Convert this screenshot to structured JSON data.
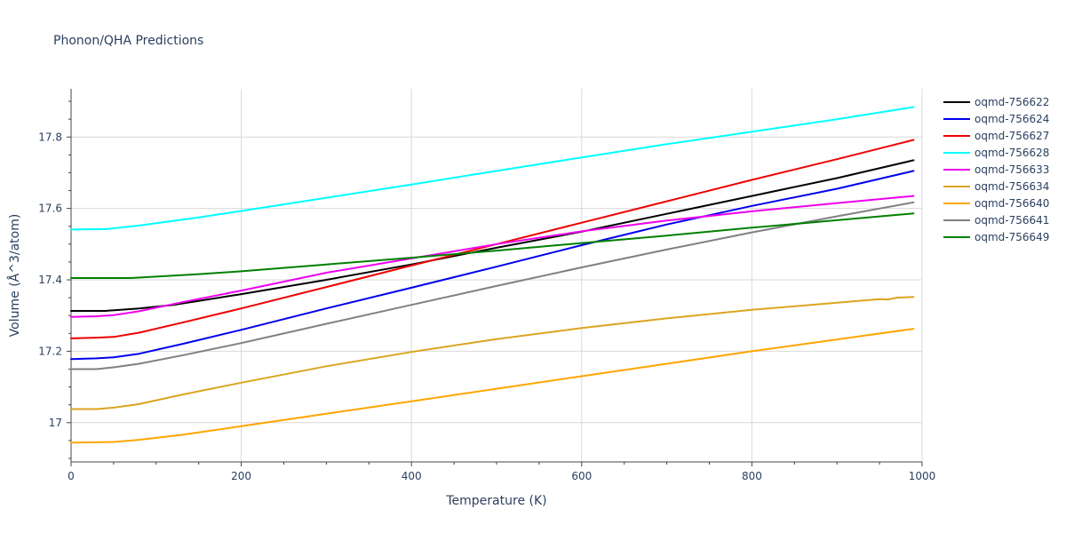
{
  "chart_data": {
    "type": "line",
    "title": "Phonon/QHA Predictions",
    "xlabel": "Temperature (K)",
    "ylabel": "Volume (Å^3/atom)",
    "xlim": [
      0,
      1000
    ],
    "ylim": [
      16.89,
      17.935
    ],
    "xticks": [
      0,
      200,
      400,
      600,
      800,
      1000
    ],
    "xtick_labels": [
      "0",
      "200",
      "400",
      "600",
      "800",
      "1000"
    ],
    "yticks": [
      17.0,
      17.2,
      17.4,
      17.6,
      17.8
    ],
    "ytick_labels": [
      "17",
      "17.2",
      "17.4",
      "17.6",
      "17.8"
    ],
    "grid": true,
    "legend_position": "top-right",
    "series": [
      {
        "name": "oqmd-756622",
        "color": "#000000",
        "x": [
          0,
          40,
          80,
          120,
          200,
          300,
          400,
          500,
          600,
          700,
          800,
          900,
          990
        ],
        "y": [
          17.313,
          17.313,
          17.32,
          17.33,
          17.36,
          17.4,
          17.443,
          17.49,
          17.535,
          17.585,
          17.635,
          17.685,
          17.735
        ]
      },
      {
        "name": "oqmd-756624",
        "color": "#0000ee",
        "x": [
          0,
          30,
          50,
          80,
          130,
          200,
          300,
          400,
          500,
          600,
          700,
          800,
          900,
          990
        ],
        "y": [
          17.178,
          17.18,
          17.183,
          17.193,
          17.22,
          17.26,
          17.32,
          17.378,
          17.437,
          17.497,
          17.555,
          17.607,
          17.655,
          17.705
        ]
      },
      {
        "name": "oqmd-756627",
        "color": "#ee0000",
        "x": [
          0,
          30,
          50,
          80,
          130,
          200,
          300,
          400,
          500,
          600,
          700,
          800,
          900,
          990
        ],
        "y": [
          17.236,
          17.238,
          17.24,
          17.252,
          17.28,
          17.32,
          17.38,
          17.44,
          17.5,
          17.56,
          17.62,
          17.68,
          17.738,
          17.792
        ]
      },
      {
        "name": "oqmd-756628",
        "color": "#00ffff",
        "x": [
          0,
          20,
          40,
          80,
          150,
          200,
          300,
          400,
          500,
          600,
          700,
          800,
          900,
          990
        ],
        "y": [
          17.541,
          17.542,
          17.542,
          17.552,
          17.575,
          17.593,
          17.63,
          17.667,
          17.705,
          17.743,
          17.78,
          17.815,
          17.85,
          17.884
        ]
      },
      {
        "name": "oqmd-756633",
        "color": "#ee00ee",
        "x": [
          0,
          30,
          50,
          80,
          130,
          200,
          300,
          400,
          500,
          600,
          700,
          800,
          900,
          990
        ],
        "y": [
          17.296,
          17.298,
          17.301,
          17.312,
          17.337,
          17.37,
          17.42,
          17.46,
          17.5,
          17.536,
          17.566,
          17.592,
          17.615,
          17.635
        ]
      },
      {
        "name": "oqmd-756634",
        "color": "#daa520",
        "x": [
          0,
          30,
          50,
          80,
          130,
          200,
          300,
          400,
          500,
          600,
          700,
          800,
          900,
          950,
          960,
          970,
          990
        ],
        "y": [
          17.038,
          17.038,
          17.042,
          17.052,
          17.078,
          17.112,
          17.158,
          17.198,
          17.234,
          17.265,
          17.292,
          17.316,
          17.336,
          17.346,
          17.345,
          17.35,
          17.352
        ]
      },
      {
        "name": "oqmd-756640",
        "color": "#ffa500",
        "x": [
          0,
          30,
          50,
          80,
          130,
          200,
          300,
          400,
          500,
          600,
          700,
          800,
          900,
          990
        ],
        "y": [
          16.944,
          16.945,
          16.946,
          16.952,
          16.966,
          16.99,
          17.025,
          17.06,
          17.095,
          17.13,
          17.165,
          17.2,
          17.233,
          17.263
        ]
      },
      {
        "name": "oqmd-756641",
        "color": "#808080",
        "x": [
          0,
          30,
          50,
          80,
          130,
          200,
          300,
          400,
          500,
          600,
          700,
          800,
          900,
          990
        ],
        "y": [
          17.15,
          17.15,
          17.155,
          17.165,
          17.188,
          17.223,
          17.277,
          17.33,
          17.383,
          17.435,
          17.485,
          17.533,
          17.578,
          17.617
        ]
      },
      {
        "name": "oqmd-756649",
        "color": "#008000",
        "x": [
          0,
          40,
          70,
          100,
          150,
          200,
          300,
          400,
          500,
          600,
          700,
          800,
          900,
          990
        ],
        "y": [
          17.405,
          17.405,
          17.405,
          17.409,
          17.416,
          17.424,
          17.443,
          17.462,
          17.482,
          17.503,
          17.524,
          17.546,
          17.567,
          17.586
        ]
      }
    ]
  }
}
